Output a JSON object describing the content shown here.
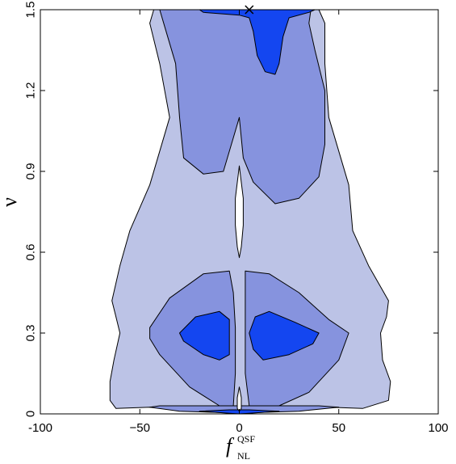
{
  "chart_data": {
    "type": "contour",
    "xlabel": "f",
    "xlabel_superscript": "QSF",
    "xlabel_subscript": "NL",
    "ylabel": "ν",
    "xlim": [
      -100,
      100
    ],
    "ylim": [
      0,
      1.5
    ],
    "x_ticks": [
      -100,
      -50,
      0,
      50,
      100
    ],
    "x_tick_labels": [
      "-100",
      "−50",
      "0",
      "50",
      "100"
    ],
    "y_ticks": [
      0,
      0.3,
      0.6,
      0.9,
      1.2,
      1.5
    ],
    "y_tick_labels": [
      "0",
      "0.3",
      "0.6",
      "0.9",
      "1.2",
      "1.5"
    ],
    "grid": false,
    "best_fit_marker": {
      "x": 5,
      "y": 1.5,
      "symbol": "x"
    },
    "levels": [
      {
        "name": "outer",
        "color": "#bcc3e6",
        "regions": [
          [
            [
              -43,
              1.5
            ],
            [
              -45,
              1.45
            ],
            [
              -40,
              1.3
            ],
            [
              -35,
              1.1
            ],
            [
              -45,
              0.85
            ],
            [
              -55,
              0.68
            ],
            [
              -60,
              0.55
            ],
            [
              -64,
              0.42
            ],
            [
              -62,
              0.36
            ],
            [
              -60,
              0.3
            ],
            [
              -63,
              0.2
            ],
            [
              -65,
              0.12
            ],
            [
              -65,
              0.05
            ],
            [
              -62,
              0.02
            ],
            [
              -45,
              0.025
            ],
            [
              -15,
              0.02
            ],
            [
              0,
              0.0
            ],
            [
              15,
              0.02
            ],
            [
              45,
              0.025
            ],
            [
              62,
              0.02
            ],
            [
              75,
              0.05
            ],
            [
              76,
              0.12
            ],
            [
              72,
              0.2
            ],
            [
              71,
              0.3
            ],
            [
              74,
              0.36
            ],
            [
              75,
              0.42
            ],
            [
              65,
              0.55
            ],
            [
              57,
              0.68
            ],
            [
              55,
              0.85
            ],
            [
              45,
              1.1
            ],
            [
              43,
              1.3
            ],
            [
              43,
              1.45
            ],
            [
              40,
              1.5
            ]
          ]
        ]
      },
      {
        "name": "middle",
        "color": "#8693de",
        "regions": [
          [
            [
              -40,
              1.5
            ],
            [
              -38,
              1.45
            ],
            [
              -32,
              1.3
            ],
            [
              -30,
              1.1
            ],
            [
              -28,
              0.95
            ],
            [
              -18,
              0.89
            ],
            [
              -8,
              0.9
            ],
            [
              -2,
              1.05
            ],
            [
              0,
              1.1
            ],
            [
              2,
              0.95
            ],
            [
              7,
              0.86
            ],
            [
              18,
              0.78
            ],
            [
              30,
              0.8
            ],
            [
              40,
              0.88
            ],
            [
              43,
              1.0
            ],
            [
              43,
              1.2
            ],
            [
              38,
              1.35
            ],
            [
              35,
              1.45
            ],
            [
              36,
              1.5
            ]
          ],
          [
            [
              -5,
              0.53
            ],
            [
              -18,
              0.52
            ],
            [
              -35,
              0.43
            ],
            [
              -45,
              0.32
            ],
            [
              -45,
              0.28
            ],
            [
              -40,
              0.22
            ],
            [
              -25,
              0.1
            ],
            [
              -10,
              0.03
            ],
            [
              -3,
              0.03
            ],
            [
              -2,
              0.15
            ],
            [
              -2,
              0.32
            ],
            [
              -3,
              0.45
            ]
          ],
          [
            [
              3,
              0.53
            ],
            [
              15,
              0.52
            ],
            [
              30,
              0.45
            ],
            [
              45,
              0.35
            ],
            [
              55,
              0.3
            ],
            [
              50,
              0.2
            ],
            [
              35,
              0.08
            ],
            [
              20,
              0.03
            ],
            [
              5,
              0.03
            ],
            [
              3,
              0.15
            ],
            [
              3,
              0.32
            ],
            [
              3,
              0.45
            ]
          ],
          [
            [
              -45,
              0.025
            ],
            [
              -30,
              0.01
            ],
            [
              -10,
              0.005
            ],
            [
              0,
              0.005
            ],
            [
              10,
              0.005
            ],
            [
              30,
              0.01
            ],
            [
              50,
              0.025
            ],
            [
              40,
              0.03
            ],
            [
              0,
              0.03
            ],
            [
              -40,
              0.03
            ]
          ]
        ]
      },
      {
        "name": "inner",
        "color": "#1446f0",
        "regions": [
          [
            [
              -20,
              1.5
            ],
            [
              -18,
              1.49
            ],
            [
              0,
              1.48
            ],
            [
              5,
              1.47
            ],
            [
              7,
              1.42
            ],
            [
              9,
              1.33
            ],
            [
              13,
              1.27
            ],
            [
              18,
              1.26
            ],
            [
              20,
              1.3
            ],
            [
              22,
              1.4
            ],
            [
              25,
              1.47
            ],
            [
              35,
              1.49
            ],
            [
              38,
              1.5
            ]
          ],
          [
            [
              -30,
              0.3
            ],
            [
              -22,
              0.36
            ],
            [
              -10,
              0.38
            ],
            [
              -5,
              0.35
            ],
            [
              -5,
              0.22
            ],
            [
              -10,
              0.2
            ],
            [
              -18,
              0.22
            ],
            [
              -28,
              0.27
            ]
          ],
          [
            [
              5,
              0.3
            ],
            [
              8,
              0.36
            ],
            [
              15,
              0.38
            ],
            [
              28,
              0.34
            ],
            [
              40,
              0.3
            ],
            [
              37,
              0.26
            ],
            [
              25,
              0.22
            ],
            [
              12,
              0.2
            ],
            [
              7,
              0.24
            ]
          ],
          [
            [
              -20,
              0.01
            ],
            [
              -5,
              0.002
            ],
            [
              0,
              0.0
            ],
            [
              5,
              0.002
            ],
            [
              20,
              0.01
            ],
            [
              5,
              0.015
            ],
            [
              -5,
              0.015
            ]
          ]
        ]
      },
      {
        "name": "hole",
        "color": "#ffffff",
        "regions": [
          [
            [
              0,
              0.92
            ],
            [
              2,
              0.8
            ],
            [
              2,
              0.7
            ],
            [
              1,
              0.62
            ],
            [
              0,
              0.58
            ],
            [
              -1,
              0.62
            ],
            [
              -2,
              0.7
            ],
            [
              -2,
              0.8
            ]
          ],
          [
            [
              0,
              0.1
            ],
            [
              1,
              0.06
            ],
            [
              1,
              0.02
            ],
            [
              0,
              0.01
            ],
            [
              -1,
              0.02
            ],
            [
              -1,
              0.06
            ]
          ]
        ]
      }
    ]
  }
}
